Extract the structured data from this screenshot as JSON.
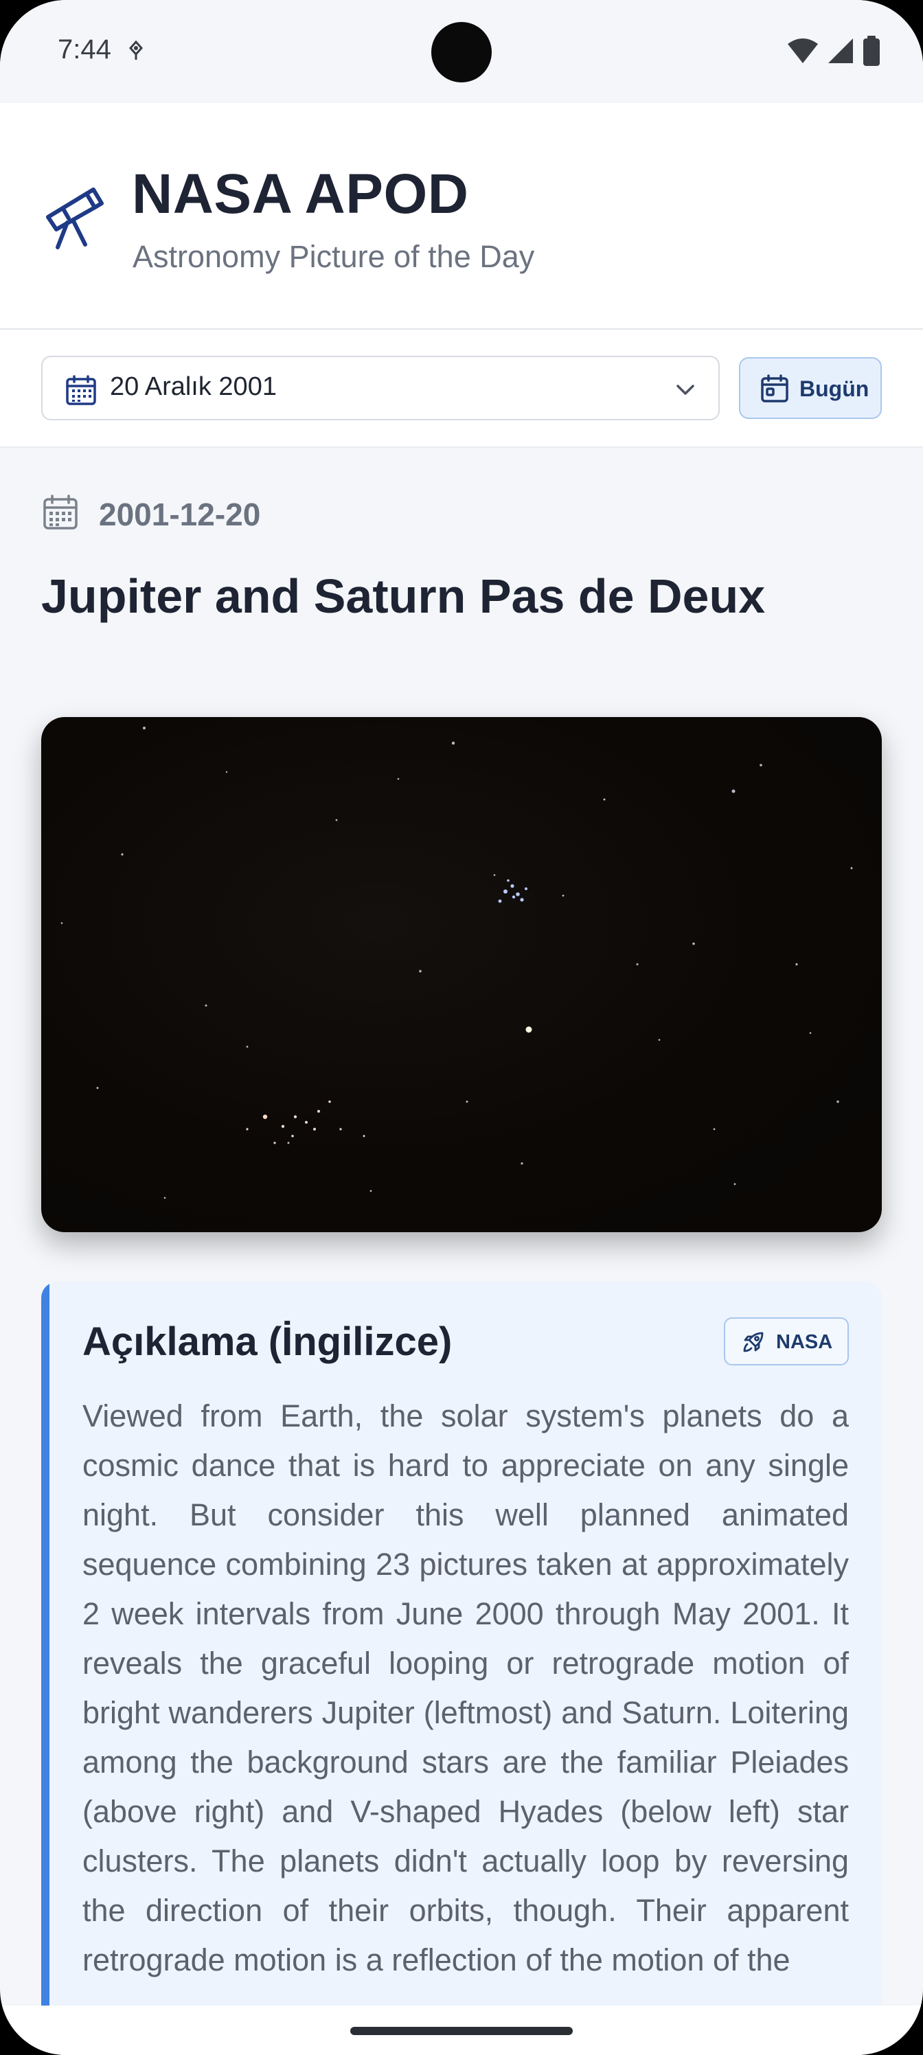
{
  "status_bar": {
    "time": "7:44"
  },
  "header": {
    "title": "NASA APOD",
    "subtitle": "Astronomy Picture of the Day"
  },
  "date_picker": {
    "selected": "20 Aralık 2001",
    "today_label": "Bugün"
  },
  "post": {
    "date": "2001-12-20",
    "title": "Jupiter and Saturn Pas de Deux",
    "description_heading": "Açıklama (İngilizce)",
    "badge": "NASA",
    "description": "Viewed from Earth, the solar system's planets do a cosmic dance that is hard to appreciate on any single night. But consider this well planned animated sequence combining 23 pictures taken at approximately 2 week intervals from June 2000 through May 2001. It reveals the graceful looping or retrograde motion of bright wanderers Jupiter (leftmost) and Saturn. Loitering among the background stars are the familiar Pleiades (above right) and V-shaped Hyades (below left) star clusters. The planets didn't actually loop by reversing the direction of their orbits, though. Their apparent retrograde motion is a reflection of the motion of the"
  },
  "colors": {
    "accent": "#3f82e4",
    "title": "#1e2433",
    "muted": "#6b7280",
    "card_bg": "#edf4fd"
  },
  "icons": {
    "logo": "telescope-icon",
    "date_picker": "calendar-icon",
    "dropdown": "chevron-down-icon",
    "today": "calendar-today-icon",
    "post_date": "calendar-icon",
    "badge": "rocket-icon"
  }
}
